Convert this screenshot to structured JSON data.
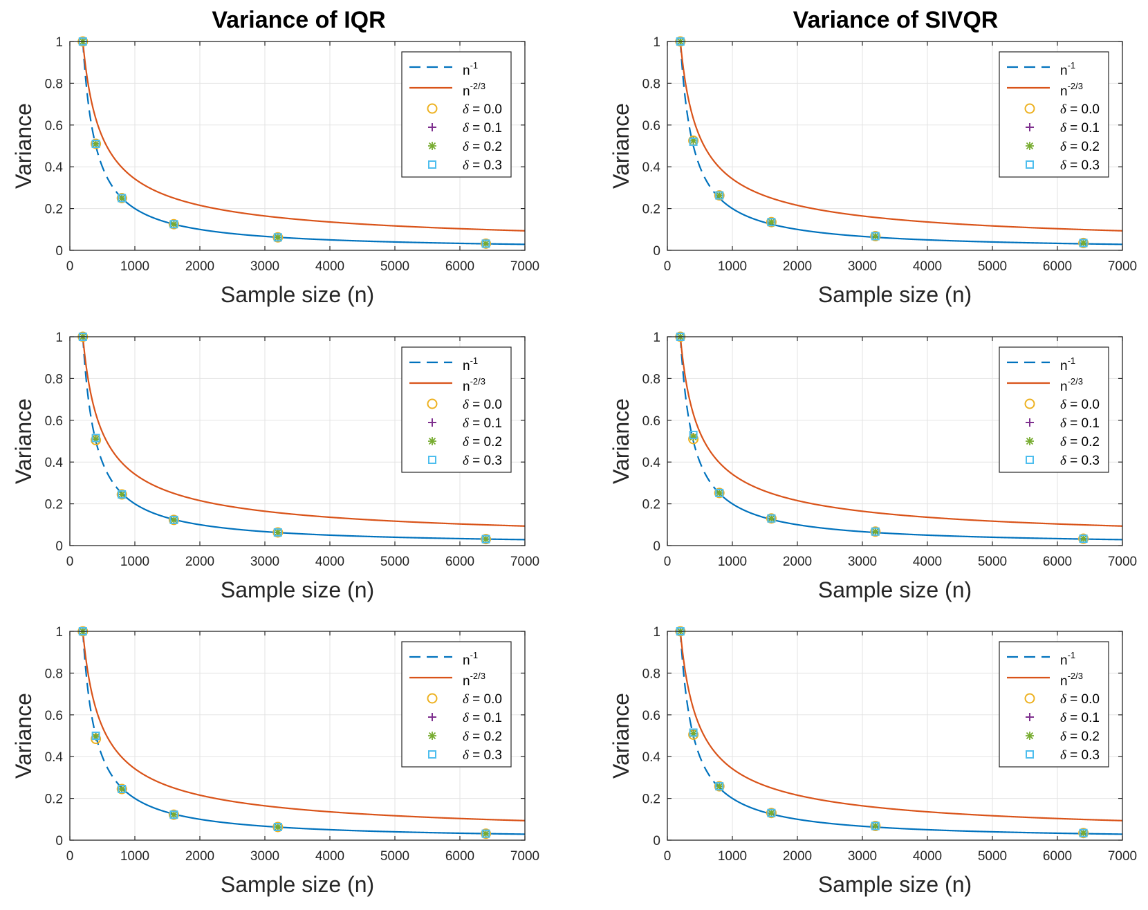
{
  "column_titles": [
    "Variance of IQR",
    "Variance of SIVQR"
  ],
  "colors": {
    "n_inv": "#0072BD",
    "n_23": "#D95319",
    "delta00": "#EDB120",
    "delta01": "#7E2F8E",
    "delta02": "#77AC30",
    "delta03": "#4DBEEE",
    "grid": "#e3e3e3",
    "axes": "#262626"
  },
  "legend": [
    {
      "key": "n_inv",
      "base": "n",
      "sup": "-1",
      "style": "dashed"
    },
    {
      "key": "n_23",
      "base": "n",
      "sup": "-2/3",
      "style": "solid"
    },
    {
      "key": "d0",
      "label": "δ = 0.0",
      "marker": "circle"
    },
    {
      "key": "d1",
      "label": "δ = 0.1",
      "marker": "plus"
    },
    {
      "key": "d2",
      "label": "δ = 0.2",
      "marker": "asterisk"
    },
    {
      "key": "d3",
      "label": "δ = 0.3",
      "marker": "square"
    }
  ],
  "chart_data": [
    {
      "panel": "row1-left",
      "type": "line",
      "title": "Variance of IQR",
      "xlabel": "Sample size (n)",
      "ylabel": "Variance",
      "xlim": [
        0,
        7000
      ],
      "ylim": [
        0,
        1
      ],
      "xticks": [
        0,
        1000,
        2000,
        3000,
        4000,
        5000,
        6000,
        7000
      ],
      "yticks": [
        0,
        0.2,
        0.4,
        0.6,
        0.8,
        1
      ],
      "curves": [
        {
          "name": "n^-1",
          "formula": "200/n"
        },
        {
          "name": "n^-2/3",
          "formula": "(200/n)^(2/3)"
        }
      ],
      "x": [
        200,
        400,
        800,
        1600,
        3200,
        6400
      ],
      "series": [
        {
          "name": "δ = 0.0",
          "values": [
            1,
            0.51,
            0.25,
            0.125,
            0.062,
            0.032
          ]
        },
        {
          "name": "δ = 0.1",
          "values": [
            1,
            0.51,
            0.25,
            0.125,
            0.062,
            0.032
          ]
        },
        {
          "name": "δ = 0.2",
          "values": [
            1,
            0.51,
            0.25,
            0.125,
            0.062,
            0.032
          ]
        },
        {
          "name": "δ = 0.3",
          "values": [
            1,
            0.51,
            0.25,
            0.125,
            0.062,
            0.032
          ]
        }
      ],
      "legend_position": "top-right",
      "grid": true
    },
    {
      "panel": "row1-right",
      "type": "line",
      "title": "Variance of SIVQR",
      "xlabel": "Sample size (n)",
      "ylabel": "Variance",
      "xlim": [
        0,
        7000
      ],
      "ylim": [
        0,
        1
      ],
      "xticks": [
        0,
        1000,
        2000,
        3000,
        4000,
        5000,
        6000,
        7000
      ],
      "yticks": [
        0,
        0.2,
        0.4,
        0.6,
        0.8,
        1
      ],
      "curves": [
        {
          "name": "n^-1",
          "formula": "200/n"
        },
        {
          "name": "n^-2/3",
          "formula": "(200/n)^(2/3)"
        }
      ],
      "x": [
        200,
        400,
        800,
        1600,
        3200,
        6400
      ],
      "series": [
        {
          "name": "δ = 0.0",
          "values": [
            1,
            0.525,
            0.263,
            0.135,
            0.068,
            0.035
          ]
        },
        {
          "name": "δ = 0.1",
          "values": [
            1,
            0.525,
            0.263,
            0.135,
            0.068,
            0.035
          ]
        },
        {
          "name": "δ = 0.2",
          "values": [
            1,
            0.525,
            0.263,
            0.135,
            0.068,
            0.035
          ]
        },
        {
          "name": "δ = 0.3",
          "values": [
            1,
            0.52,
            0.263,
            0.135,
            0.068,
            0.035
          ]
        }
      ],
      "legend_position": "top-right",
      "grid": true
    },
    {
      "panel": "row2-left",
      "type": "line",
      "title": "",
      "xlabel": "Sample size (n)",
      "ylabel": "Variance",
      "xlim": [
        0,
        7000
      ],
      "ylim": [
        0,
        1
      ],
      "xticks": [
        0,
        1000,
        2000,
        3000,
        4000,
        5000,
        6000,
        7000
      ],
      "yticks": [
        0,
        0.2,
        0.4,
        0.6,
        0.8,
        1
      ],
      "curves": [
        {
          "name": "n^-1",
          "formula": "200/n"
        },
        {
          "name": "n^-2/3",
          "formula": "(200/n)^(2/3)"
        }
      ],
      "x": [
        200,
        400,
        800,
        1600,
        3200,
        6400
      ],
      "series": [
        {
          "name": "δ = 0.0",
          "values": [
            1,
            0.505,
            0.245,
            0.123,
            0.063,
            0.031
          ]
        },
        {
          "name": "δ = 0.1",
          "values": [
            1,
            0.51,
            0.245,
            0.123,
            0.063,
            0.031
          ]
        },
        {
          "name": "δ = 0.2",
          "values": [
            1,
            0.51,
            0.245,
            0.123,
            0.063,
            0.031
          ]
        },
        {
          "name": "δ = 0.3",
          "values": [
            1,
            0.515,
            0.245,
            0.123,
            0.063,
            0.031
          ]
        }
      ],
      "legend_position": "top-right",
      "grid": true
    },
    {
      "panel": "row2-right",
      "type": "line",
      "title": "",
      "xlabel": "Sample size (n)",
      "ylabel": "Variance",
      "xlim": [
        0,
        7000
      ],
      "ylim": [
        0,
        1
      ],
      "xticks": [
        0,
        1000,
        2000,
        3000,
        4000,
        5000,
        6000,
        7000
      ],
      "yticks": [
        0,
        0.2,
        0.4,
        0.6,
        0.8,
        1
      ],
      "curves": [
        {
          "name": "n^-1",
          "formula": "200/n"
        },
        {
          "name": "n^-2/3",
          "formula": "(200/n)^(2/3)"
        }
      ],
      "x": [
        200,
        400,
        800,
        1600,
        3200,
        6400
      ],
      "series": [
        {
          "name": "δ = 0.0",
          "values": [
            1,
            0.51,
            0.252,
            0.13,
            0.067,
            0.033
          ]
        },
        {
          "name": "δ = 0.1",
          "values": [
            1,
            0.52,
            0.252,
            0.13,
            0.067,
            0.033
          ]
        },
        {
          "name": "δ = 0.2",
          "values": [
            1,
            0.52,
            0.252,
            0.13,
            0.067,
            0.033
          ]
        },
        {
          "name": "δ = 0.3",
          "values": [
            1,
            0.53,
            0.252,
            0.13,
            0.067,
            0.033
          ]
        }
      ],
      "legend_position": "top-right",
      "grid": true
    },
    {
      "panel": "row3-left",
      "type": "line",
      "title": "",
      "xlabel": "Sample size (n)",
      "ylabel": "Variance",
      "xlim": [
        0,
        7000
      ],
      "ylim": [
        0,
        1
      ],
      "xticks": [
        0,
        1000,
        2000,
        3000,
        4000,
        5000,
        6000,
        7000
      ],
      "yticks": [
        0,
        0.2,
        0.4,
        0.6,
        0.8,
        1
      ],
      "curves": [
        {
          "name": "n^-1",
          "formula": "200/n"
        },
        {
          "name": "n^-2/3",
          "formula": "(200/n)^(2/3)"
        }
      ],
      "x": [
        200,
        400,
        800,
        1600,
        3200,
        6400
      ],
      "series": [
        {
          "name": "δ = 0.0",
          "values": [
            1,
            0.485,
            0.245,
            0.122,
            0.063,
            0.031
          ]
        },
        {
          "name": "δ = 0.1",
          "values": [
            1,
            0.495,
            0.245,
            0.122,
            0.063,
            0.031
          ]
        },
        {
          "name": "δ = 0.2",
          "values": [
            1,
            0.495,
            0.245,
            0.122,
            0.063,
            0.031
          ]
        },
        {
          "name": "δ = 0.3",
          "values": [
            1,
            0.5,
            0.245,
            0.122,
            0.063,
            0.031
          ]
        }
      ],
      "legend_position": "top-right",
      "grid": true
    },
    {
      "panel": "row3-right",
      "type": "line",
      "title": "",
      "xlabel": "Sample size (n)",
      "ylabel": "Variance",
      "xlim": [
        0,
        7000
      ],
      "ylim": [
        0,
        1
      ],
      "xticks": [
        0,
        1000,
        2000,
        3000,
        4000,
        5000,
        6000,
        7000
      ],
      "yticks": [
        0,
        0.2,
        0.4,
        0.6,
        0.8,
        1
      ],
      "curves": [
        {
          "name": "n^-1",
          "formula": "200/n"
        },
        {
          "name": "n^-2/3",
          "formula": "(200/n)^(2/3)"
        }
      ],
      "x": [
        200,
        400,
        800,
        1600,
        3200,
        6400
      ],
      "series": [
        {
          "name": "δ = 0.0",
          "values": [
            1,
            0.505,
            0.258,
            0.13,
            0.068,
            0.034
          ]
        },
        {
          "name": "δ = 0.1",
          "values": [
            1,
            0.51,
            0.258,
            0.13,
            0.068,
            0.034
          ]
        },
        {
          "name": "δ = 0.2",
          "values": [
            1,
            0.51,
            0.258,
            0.13,
            0.068,
            0.034
          ]
        },
        {
          "name": "δ = 0.3",
          "values": [
            1,
            0.515,
            0.258,
            0.13,
            0.068,
            0.034
          ]
        }
      ],
      "legend_position": "top-right",
      "grid": true
    }
  ]
}
